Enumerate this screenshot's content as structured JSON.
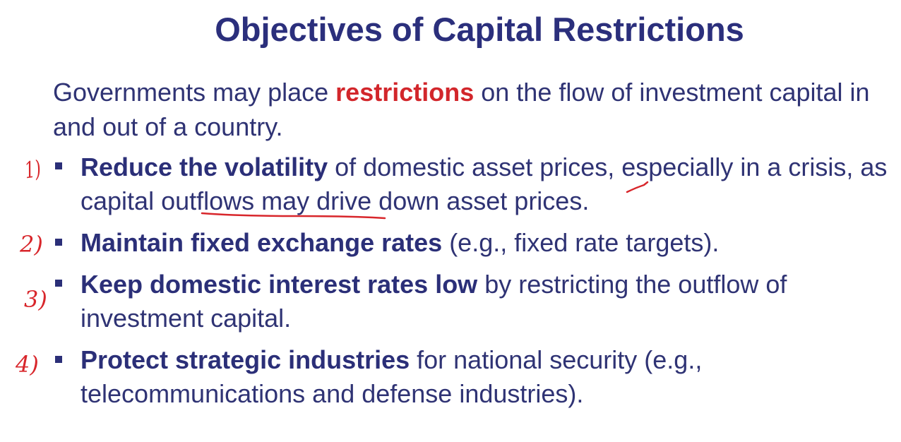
{
  "slide": {
    "title": "Objectives of Capital Restrictions",
    "intro": {
      "before": "Governments may place ",
      "highlight": "restrictions",
      "after": " on the flow of investment capital in and out of a country."
    },
    "bullets": [
      {
        "number": "1)",
        "lead": "Reduce the volatility",
        "text_a": " of domestic asset prices, especially in a crisis, as ",
        "underlined": "capital outflows",
        "text_b": " may drive down asset prices."
      },
      {
        "number": "2)",
        "lead": "Maintain fixed exchange rates",
        "text": " (e.g., fixed rate targets)."
      },
      {
        "number": "3)",
        "lead": "Keep domestic interest rates low",
        "text": " by restricting the outflow of investment capital."
      },
      {
        "number": "4)",
        "lead": "Protect strategic industries",
        "text": " for national security (e.g., telecommunications and defense industries)."
      }
    ],
    "colors": {
      "text": "#2f3374",
      "title": "#2b2f7c",
      "highlight": "#d2262b",
      "annotation_ink": "#d8262b"
    }
  }
}
